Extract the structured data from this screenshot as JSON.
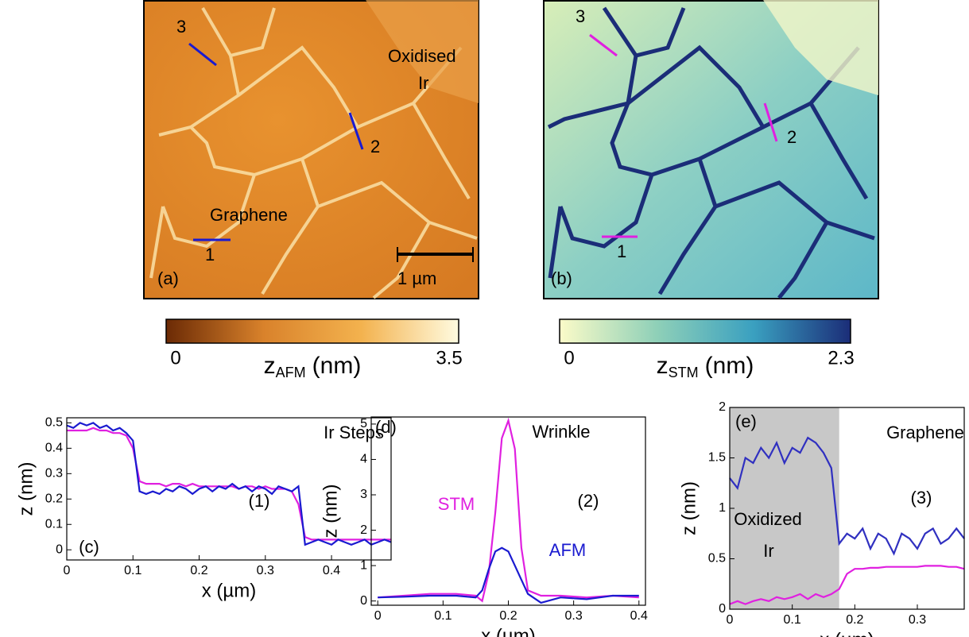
{
  "images": [
    {
      "panel": "(a)",
      "labels": [
        "3",
        "2",
        "1",
        "Oxidised",
        "Ir",
        "Graphene"
      ],
      "scalebar": "1 µm"
    },
    {
      "panel": "(b)",
      "labels": [
        "3",
        "2",
        "1"
      ]
    }
  ],
  "colorbars": [
    {
      "symbol": "z",
      "subscript": "AFM",
      "unit": "(nm)",
      "colors": [
        "#6b2a05",
        "#d9822b",
        "#f3b24e",
        "#fffbe0"
      ],
      "lim": [
        0,
        3.5
      ],
      "ticks": [
        0,
        3.5
      ]
    },
    {
      "symbol": "z",
      "subscript": "STM",
      "unit": "(nm)",
      "colors": [
        "#fbfbc8",
        "#8fd0b8",
        "#3aa0c0",
        "#1b2d78"
      ],
      "lim": [
        0,
        2.3
      ],
      "ticks": [
        0,
        2.3
      ]
    }
  ],
  "chart_data": [
    {
      "type": "line",
      "x_label": "x (µm)",
      "y_label": "z (nm)",
      "annotations": [
        "Ir Steps",
        "(1)",
        "(c)"
      ],
      "x": [
        0,
        0.01,
        0.02,
        0.03,
        0.04,
        0.05,
        0.06,
        0.07,
        0.08,
        0.09,
        0.1,
        0.11,
        0.12,
        0.13,
        0.14,
        0.15,
        0.16,
        0.17,
        0.18,
        0.19,
        0.2,
        0.21,
        0.22,
        0.23,
        0.24,
        0.25,
        0.26,
        0.27,
        0.28,
        0.29,
        0.3,
        0.31,
        0.32,
        0.33,
        0.34,
        0.35,
        0.36,
        0.37,
        0.38,
        0.39,
        0.4,
        0.41,
        0.42,
        0.43,
        0.44,
        0.45,
        0.46,
        0.47,
        0.48,
        0.49
      ],
      "series": [
        {
          "color": "#e020e0",
          "values": [
            0.47,
            0.47,
            0.47,
            0.47,
            0.48,
            0.47,
            0.47,
            0.46,
            0.46,
            0.45,
            0.4,
            0.27,
            0.26,
            0.26,
            0.26,
            0.25,
            0.26,
            0.26,
            0.25,
            0.26,
            0.25,
            0.25,
            0.25,
            0.25,
            0.25,
            0.25,
            0.24,
            0.25,
            0.25,
            0.24,
            0.25,
            0.24,
            0.24,
            0.24,
            0.23,
            0.18,
            0.05,
            0.04,
            0.04,
            0.04,
            0.04,
            0.04,
            0.04,
            0.04,
            0.04,
            0.04,
            0.04,
            0.04,
            0.04,
            0.04
          ]
        },
        {
          "color": "#1a1ad0",
          "values": [
            0.49,
            0.48,
            0.5,
            0.49,
            0.5,
            0.48,
            0.49,
            0.47,
            0.48,
            0.46,
            0.43,
            0.23,
            0.22,
            0.23,
            0.22,
            0.24,
            0.23,
            0.25,
            0.24,
            0.22,
            0.24,
            0.25,
            0.23,
            0.25,
            0.24,
            0.26,
            0.24,
            0.25,
            0.23,
            0.25,
            0.24,
            0.22,
            0.25,
            0.24,
            0.23,
            0.25,
            0.02,
            0.03,
            0.04,
            0.03,
            0.02,
            0.04,
            0.03,
            0.02,
            0.03,
            0.04,
            0.02,
            0.03,
            0.04,
            0.03
          ]
        }
      ],
      "xlim": [
        0,
        0.49
      ],
      "xticks": [
        0,
        0.1,
        0.2,
        0.3,
        0.4
      ],
      "ylim": [
        -0.04,
        0.52
      ],
      "yticks": [
        0,
        0.1,
        0.2,
        0.3,
        0.4,
        0.5
      ]
    },
    {
      "type": "line",
      "x_label": "x (µm)",
      "y_label": "z (nm)",
      "annotations": [
        "(d)",
        "Wrinkle",
        "(2)"
      ],
      "x": [
        0,
        0.04,
        0.08,
        0.12,
        0.15,
        0.16,
        0.17,
        0.18,
        0.19,
        0.2,
        0.21,
        0.22,
        0.23,
        0.25,
        0.28,
        0.32,
        0.36,
        0.4
      ],
      "series": [
        {
          "name": "STM",
          "color": "#e020e0",
          "values": [
            0.1,
            0.15,
            0.2,
            0.2,
            0.15,
            0.0,
            0.8,
            2.5,
            4.6,
            5.1,
            4.3,
            1.5,
            0.3,
            0.15,
            0.15,
            0.1,
            0.15,
            0.1
          ]
        },
        {
          "name": "AFM",
          "color": "#1a1ad0",
          "values": [
            0.1,
            0.12,
            0.15,
            0.15,
            0.1,
            0.3,
            0.9,
            1.4,
            1.5,
            1.4,
            1.0,
            0.6,
            0.2,
            -0.05,
            0.1,
            0.05,
            0.15,
            0.15
          ]
        }
      ],
      "xlim": [
        -0.01,
        0.41
      ],
      "xticks": [
        0,
        0.1,
        0.2,
        0.3,
        0.4
      ],
      "ylim": [
        -0.12,
        5.2
      ],
      "yticks": [
        0,
        1,
        2,
        3,
        4,
        5
      ]
    },
    {
      "type": "line",
      "x_label": "x (µm)",
      "y_label": "z (nm)",
      "annotations": [
        "(e)",
        "Graphene",
        "(3)",
        "Oxidized",
        "Ir"
      ],
      "shade": [
        0,
        0.175
      ],
      "x": [
        0,
        0.0125,
        0.025,
        0.0375,
        0.05,
        0.0625,
        0.075,
        0.0875,
        0.1,
        0.1125,
        0.125,
        0.1375,
        0.15,
        0.1625,
        0.175,
        0.1875,
        0.2,
        0.2125,
        0.225,
        0.2375,
        0.25,
        0.2625,
        0.275,
        0.2875,
        0.3,
        0.3125,
        0.325,
        0.3375,
        0.35,
        0.3625,
        0.375
      ],
      "series": [
        {
          "color": "#3030c0",
          "values": [
            1.3,
            1.2,
            1.5,
            1.45,
            1.6,
            1.5,
            1.65,
            1.45,
            1.6,
            1.55,
            1.7,
            1.65,
            1.55,
            1.4,
            0.65,
            0.75,
            0.7,
            0.8,
            0.6,
            0.75,
            0.7,
            0.55,
            0.75,
            0.7,
            0.6,
            0.75,
            0.8,
            0.65,
            0.7,
            0.8,
            0.7
          ]
        },
        {
          "color": "#e020e0",
          "values": [
            0.05,
            0.08,
            0.05,
            0.08,
            0.1,
            0.08,
            0.12,
            0.1,
            0.12,
            0.15,
            0.1,
            0.15,
            0.12,
            0.15,
            0.2,
            0.35,
            0.4,
            0.4,
            0.41,
            0.41,
            0.42,
            0.42,
            0.42,
            0.42,
            0.42,
            0.43,
            0.43,
            0.43,
            0.42,
            0.42,
            0.4
          ]
        }
      ],
      "xlim": [
        0,
        0.375
      ],
      "xticks": [
        0,
        0.1,
        0.2,
        0.3
      ],
      "ylim": [
        0,
        2
      ],
      "yticks": [
        0,
        0.5,
        1,
        1.5,
        2
      ]
    }
  ]
}
